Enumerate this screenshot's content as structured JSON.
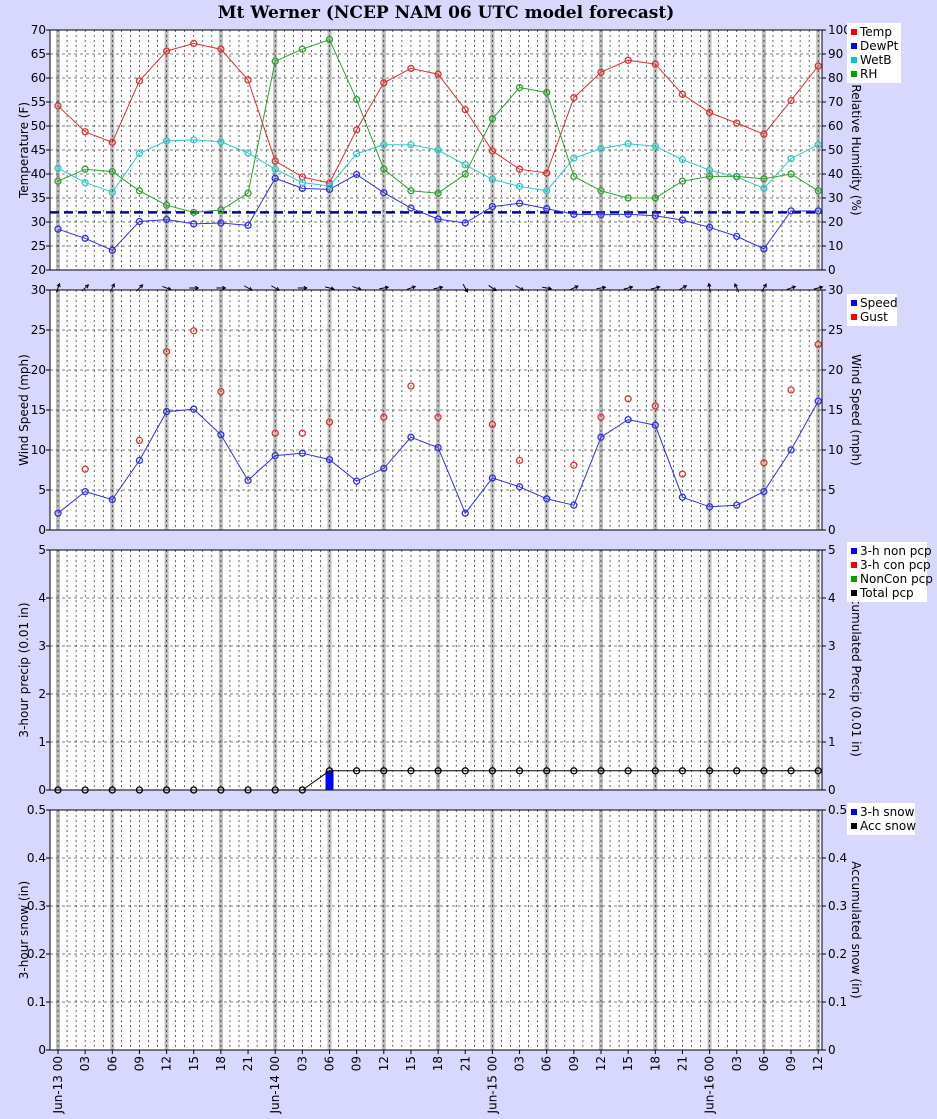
{
  "chart_data": {
    "title": "Mt Werner (NCEP NAM 06 UTC model forecast)",
    "x_tick_labels": [
      "Jun-13 00",
      "03",
      "06",
      "09",
      "12",
      "15",
      "18",
      "21",
      "Jun-14 00",
      "03",
      "06",
      "09",
      "12",
      "15",
      "18",
      "21",
      "Jun-15 00",
      "03",
      "06",
      "09",
      "12",
      "15",
      "18",
      "21",
      "Jun-16 00",
      "03",
      "06",
      "09",
      "12"
    ],
    "panels": [
      {
        "id": "temperature",
        "type": "line",
        "ylabel_left": "Temperature (F)",
        "ylabel_right": "Relative Humidity (%)",
        "ylim_left": [
          20,
          70
        ],
        "ylim_right": [
          0,
          100
        ],
        "yticks_left": [
          "20",
          "25",
          "30",
          "35",
          "40",
          "45",
          "50",
          "55",
          "60",
          "65",
          "70"
        ],
        "yticks_right": [
          "0",
          "10",
          "20",
          "30",
          "40",
          "50",
          "60",
          "70",
          "80",
          "90",
          "100"
        ],
        "freezing_line": 32,
        "legend": [
          {
            "label": "Temp",
            "color": "#ff0000"
          },
          {
            "label": "DewPt",
            "color": "#0000ff"
          },
          {
            "label": "WetB",
            "color": "#00c8c8"
          },
          {
            "label": "RH",
            "color": "#00a000"
          }
        ],
        "series": [
          {
            "name": "Temp",
            "axis": "left",
            "color": "#e03030",
            "values": [
              54.2,
              48.8,
              46.6,
              59.4,
              65.6,
              67.2,
              66.0,
              59.6,
              42.7,
              39.4,
              38.1,
              49.2,
              59.0,
              62.0,
              60.8,
              53.4,
              44.8,
              41.0,
              40.2,
              55.9,
              61.2,
              63.7,
              62.9,
              56.6,
              52.8,
              50.6,
              48.3,
              55.3,
              62.5
            ]
          },
          {
            "name": "DewPt",
            "axis": "left",
            "color": "#3030e0",
            "values": [
              28.5,
              26.6,
              24.1,
              30.1,
              30.5,
              29.6,
              29.8,
              29.3,
              39.1,
              37.0,
              36.8,
              39.9,
              36.1,
              32.9,
              30.6,
              29.8,
              33.2,
              33.9,
              32.8,
              31.6,
              31.5,
              31.6,
              31.3,
              30.4,
              28.9,
              27.0,
              24.4,
              32.3,
              32.3
            ]
          },
          {
            "name": "WetB",
            "axis": "left",
            "color": "#30c8c8",
            "values": [
              41.2,
              38.2,
              36.2,
              44.3,
              46.9,
              47.1,
              46.7,
              44.4,
              41.0,
              38.2,
              37.5,
              44.2,
              46.1,
              46.1,
              45.0,
              41.9,
              38.9,
              37.4,
              36.5,
              43.3,
              45.3,
              46.3,
              45.8,
              43.0,
              40.8,
              39.4,
              37.0,
              43.2,
              46.1
            ]
          },
          {
            "name": "RH",
            "axis": "right",
            "color": "#30a030",
            "values": [
              37,
              42,
              41,
              33,
              27,
              24,
              25,
              32,
              87,
              92,
              96,
              71,
              42,
              33,
              32,
              40,
              63,
              76,
              74,
              39,
              33,
              30,
              30,
              37,
              39,
              39,
              38,
              40,
              33
            ]
          }
        ]
      },
      {
        "id": "wind",
        "type": "line",
        "ylabel_left": "Wind Speed (mph)",
        "ylabel_right": "Wind Speed (mph)",
        "ylim_left": [
          0,
          30
        ],
        "ylim_right": [
          0,
          30
        ],
        "yticks_left": [
          "0",
          "5",
          "10",
          "15",
          "20",
          "25",
          "30"
        ],
        "yticks_right": [
          "0",
          "5",
          "10",
          "15",
          "20",
          "25",
          "30"
        ],
        "legend": [
          {
            "label": "Speed",
            "color": "#0000ff"
          },
          {
            "label": "Gust",
            "color": "#ff0000"
          }
        ],
        "series": [
          {
            "name": "Speed",
            "color": "#3030e0",
            "values": [
              2.1,
              4.8,
              3.8,
              8.7,
              14.8,
              15.1,
              11.9,
              6.2,
              9.3,
              9.6,
              8.8,
              6.1,
              7.7,
              11.6,
              10.3,
              2.1,
              6.5,
              5.4,
              3.9,
              3.1,
              11.6,
              13.8,
              13.1,
              4.1,
              2.9,
              3.1,
              4.8,
              10.0,
              16.1
            ]
          },
          {
            "name": "Gust",
            "color": "#e03030",
            "markers_only": true,
            "values": [
              null,
              7.6,
              null,
              11.2,
              22.3,
              24.9,
              17.3,
              null,
              12.1,
              12.1,
              13.5,
              null,
              14.1,
              18.0,
              14.1,
              null,
              13.2,
              8.7,
              null,
              8.1,
              14.1,
              16.4,
              15.5,
              7.0,
              null,
              null,
              8.4,
              17.5,
              23.2
            ]
          }
        ],
        "wind_direction_deg": [
          200,
          225,
          205,
          225,
          290,
          270,
          270,
          300,
          300,
          270,
          285,
          290,
          260,
          250,
          260,
          330,
          305,
          300,
          280,
          245,
          260,
          255,
          255,
          240,
          170,
          155,
          210,
          250,
          255
        ]
      },
      {
        "id": "precip",
        "type": "bar",
        "ylabel_left": "3-hour precip (0.01 in)",
        "ylabel_right": "Accumulated Precip (0.01 in)",
        "ylim_left": [
          0,
          5
        ],
        "ylim_right": [
          0,
          5
        ],
        "yticks_left": [
          "0",
          "1",
          "2",
          "3",
          "4",
          "5"
        ],
        "yticks_right": [
          "0",
          "1",
          "2",
          "3",
          "4",
          "5"
        ],
        "legend": [
          {
            "label": "3-h non pcp",
            "color": "#0000ff"
          },
          {
            "label": "3-h con pcp",
            "color": "#ff0000"
          },
          {
            "label": "NonCon pcp",
            "color": "#00a000"
          },
          {
            "label": "Total pcp",
            "color": "#000000"
          }
        ],
        "bars": {
          "name": "3-h non pcp",
          "color": "#0000ff",
          "values": [
            0,
            0,
            0,
            0,
            0,
            0,
            0,
            0,
            0,
            0,
            0.4,
            0,
            0,
            0,
            0,
            0,
            0,
            0,
            0,
            0,
            0,
            0,
            0,
            0,
            0,
            0,
            0,
            0,
            0
          ]
        },
        "series": [
          {
            "name": "Total pcp",
            "color": "#000000",
            "values": [
              0,
              0,
              0,
              0,
              0,
              0,
              0,
              0,
              0,
              0,
              0.4,
              0.4,
              0.4,
              0.4,
              0.4,
              0.4,
              0.4,
              0.4,
              0.4,
              0.4,
              0.4,
              0.4,
              0.4,
              0.4,
              0.4,
              0.4,
              0.4,
              0.4,
              0.4
            ]
          }
        ]
      },
      {
        "id": "snow",
        "type": "bar",
        "ylabel_left": "3-hour snow (in)",
        "ylabel_right": "Accumulated snow (in)",
        "ylim_left": [
          0,
          0.5
        ],
        "ylim_right": [
          0,
          0.5
        ],
        "yticks_left": [
          "0",
          "0.1",
          "0.2",
          "0.3",
          "0.4",
          "0.5"
        ],
        "yticks_right": [
          "0",
          "0.1",
          "0.2",
          "0.3",
          "0.4",
          "0.5"
        ],
        "legend": [
          {
            "label": "3-h snow",
            "color": "#0000ff"
          },
          {
            "label": "Acc snow",
            "color": "#000000"
          }
        ],
        "series": []
      }
    ]
  }
}
